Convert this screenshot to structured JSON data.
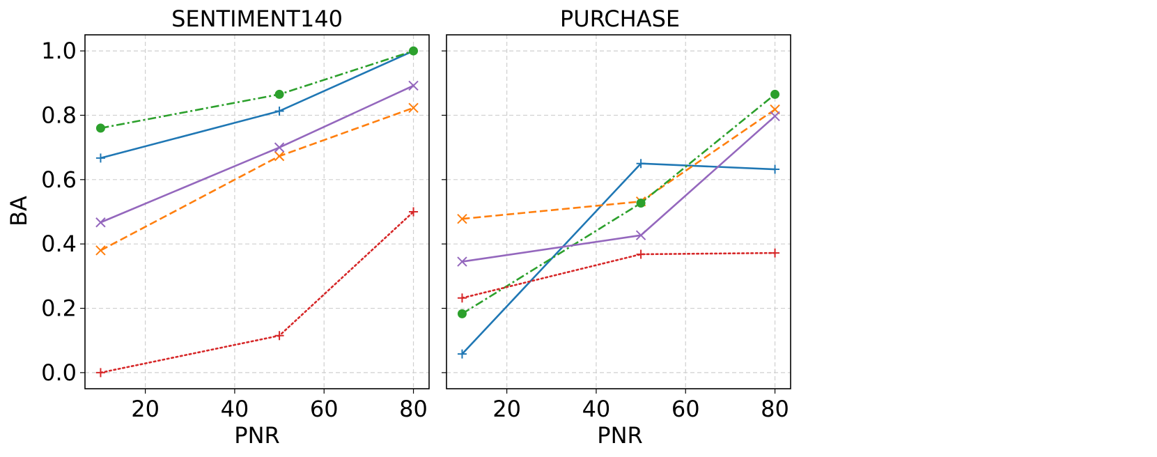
{
  "chart_data": [
    {
      "type": "line",
      "title": "SENTIMENT140",
      "xlabel": "PNR",
      "ylabel": "BA",
      "xlim": [
        6.5,
        83.5
      ],
      "ylim": [
        -0.05,
        1.05
      ],
      "xticks": [
        20,
        40,
        60,
        80
      ],
      "xtick_labels": [
        "20",
        "40",
        "60",
        "80"
      ],
      "yticks": [
        0.0,
        0.2,
        0.4,
        0.6,
        0.8,
        1.0
      ],
      "ytick_labels": [
        "0.0",
        "0.2",
        "0.4",
        "0.6",
        "0.8",
        "1.0"
      ],
      "grid": true,
      "x": [
        10,
        50,
        80
      ],
      "series": [
        {
          "color": "#1f77b4",
          "line_style": "solid",
          "marker": "plus",
          "values": [
            0.667,
            0.813,
            1.0
          ]
        },
        {
          "color": "#ff7f0e",
          "line_style": "dashed",
          "marker": "x",
          "values": [
            0.38,
            0.673,
            0.823
          ]
        },
        {
          "color": "#2ca02c",
          "line_style": "dashdot",
          "marker": "circle",
          "values": [
            0.76,
            0.865,
            1.0
          ]
        },
        {
          "color": "#d62728",
          "line_style": "dotted",
          "marker": "plus",
          "values": [
            0.0,
            0.115,
            0.5
          ]
        },
        {
          "color": "#9467bd",
          "line_style": "solid",
          "marker": "x",
          "values": [
            0.467,
            0.7,
            0.892
          ]
        }
      ]
    },
    {
      "type": "line",
      "title": "PURCHASE",
      "xlabel": "PNR",
      "ylabel": "",
      "xlim": [
        6.5,
        83.5
      ],
      "ylim": [
        -0.05,
        1.05
      ],
      "xticks": [
        20,
        40,
        60,
        80
      ],
      "xtick_labels": [
        "20",
        "40",
        "60",
        "80"
      ],
      "yticks": [
        0.0,
        0.2,
        0.4,
        0.6,
        0.8,
        1.0
      ],
      "ytick_labels": [],
      "grid": true,
      "x": [
        10,
        50,
        80
      ],
      "series": [
        {
          "color": "#1f77b4",
          "line_style": "solid",
          "marker": "plus",
          "values": [
            0.058,
            0.65,
            0.632
          ]
        },
        {
          "color": "#ff7f0e",
          "line_style": "dashed",
          "marker": "x",
          "values": [
            0.478,
            0.532,
            0.818
          ]
        },
        {
          "color": "#2ca02c",
          "line_style": "dashdot",
          "marker": "circle",
          "values": [
            0.183,
            0.527,
            0.865
          ]
        },
        {
          "color": "#d62728",
          "line_style": "dotted",
          "marker": "plus",
          "values": [
            0.232,
            0.368,
            0.372
          ]
        },
        {
          "color": "#9467bd",
          "line_style": "solid",
          "marker": "x",
          "values": [
            0.345,
            0.427,
            0.797
          ]
        }
      ]
    }
  ]
}
